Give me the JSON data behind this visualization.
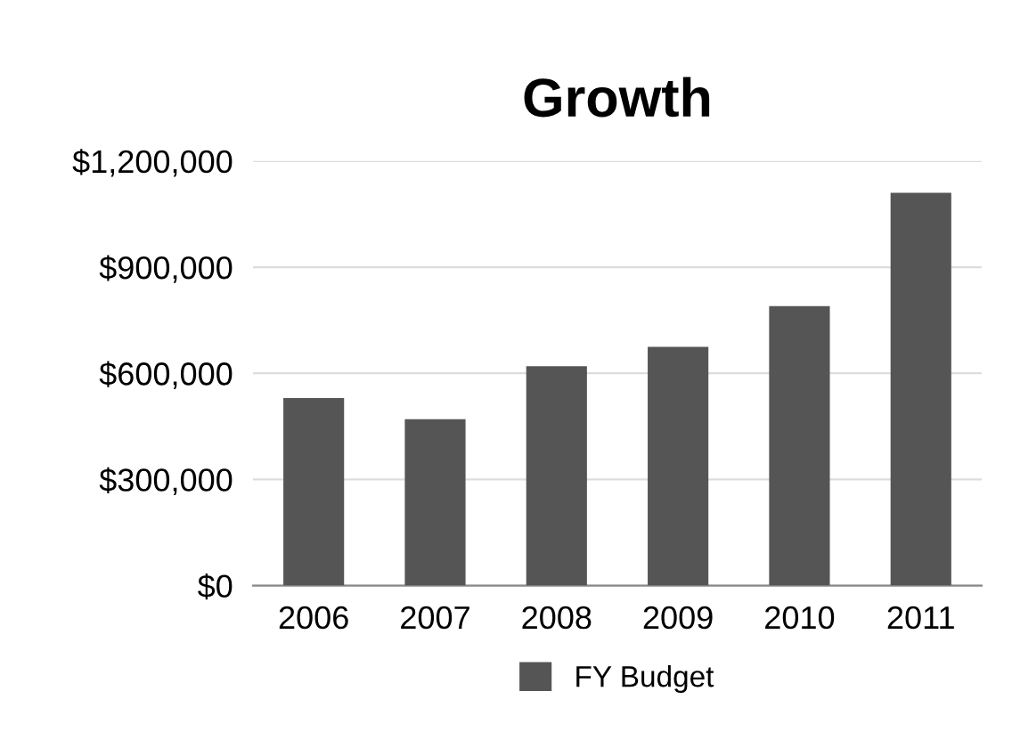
{
  "chart_data": {
    "type": "bar",
    "title": "Growth",
    "categories": [
      "2006",
      "2007",
      "2008",
      "2009",
      "2010",
      "2011"
    ],
    "series": [
      {
        "name": "FY Budget",
        "color": "#555555",
        "values": [
          530000,
          470000,
          620000,
          675000,
          790000,
          1110000
        ]
      }
    ],
    "ylim": [
      0,
      1200000
    ],
    "yticks": [
      {
        "value": 0,
        "label": "$0"
      },
      {
        "value": 300000,
        "label": "$300,000"
      },
      {
        "value": 600000,
        "label": "$600,000"
      },
      {
        "value": 900000,
        "label": "$900,000"
      },
      {
        "value": 1200000,
        "label": "$1,200,000"
      }
    ],
    "grid": "y",
    "legend": "bottom"
  }
}
